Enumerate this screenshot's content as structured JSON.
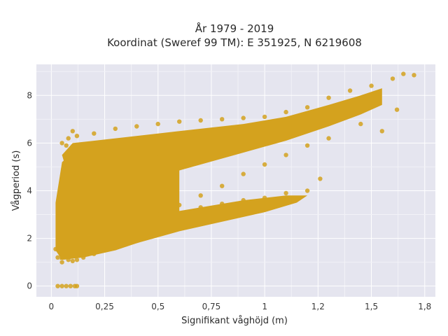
{
  "chart_data": {
    "type": "scatter",
    "title_line1": "År 1979 - 2019",
    "title_line2": "Koordinat (Sweref 99 TM): E 351925, N 6219608",
    "xlabel": "Signifikant våghöjd (m)",
    "ylabel": "Vågperiod (s)",
    "xlim": [
      -0.07,
      1.8
    ],
    "ylim": [
      -0.45,
      9.3
    ],
    "xticks": [
      0,
      0.25,
      0.5,
      0.75,
      1.0,
      1.25,
      1.5,
      1.75
    ],
    "xtick_labels": [
      "0",
      "0,25",
      "0,5",
      "0,75",
      "1",
      "1,2",
      "1,5",
      "1,8"
    ],
    "yticks": [
      0,
      2,
      4,
      6,
      8
    ],
    "ytick_labels": [
      "0",
      "2",
      "4",
      "6",
      "8"
    ],
    "grid": true,
    "marker_color": "#d4a21e",
    "plot_background": "#e5e5ef",
    "series": [
      {
        "points": [
          [
            0.02,
            1.55
          ],
          [
            0.03,
            1.2
          ],
          [
            0.04,
            2.5
          ],
          [
            0.05,
            3.8
          ],
          [
            0.06,
            5.0
          ],
          [
            0.07,
            5.9
          ],
          [
            0.08,
            1.1
          ],
          [
            0.1,
            1.05
          ],
          [
            0.12,
            1.1
          ],
          [
            0.15,
            1.2
          ],
          [
            0.2,
            1.35
          ],
          [
            0.25,
            1.5
          ],
          [
            0.3,
            1.6
          ],
          [
            0.35,
            1.75
          ],
          [
            0.4,
            1.9
          ],
          [
            0.45,
            2.1
          ],
          [
            0.05,
            6.0
          ],
          [
            0.08,
            6.2
          ],
          [
            0.1,
            6.5
          ],
          [
            0.12,
            6.3
          ],
          [
            0.2,
            6.4
          ],
          [
            0.3,
            6.6
          ],
          [
            0.4,
            6.7
          ],
          [
            0.5,
            6.8
          ],
          [
            0.6,
            6.9
          ],
          [
            0.7,
            6.95
          ],
          [
            0.8,
            7.0
          ],
          [
            0.9,
            7.05
          ],
          [
            1.0,
            7.1
          ],
          [
            1.1,
            7.3
          ],
          [
            1.2,
            7.5
          ],
          [
            1.3,
            7.9
          ],
          [
            1.4,
            8.2
          ],
          [
            1.5,
            8.4
          ],
          [
            1.6,
            8.7
          ],
          [
            1.65,
            8.9
          ],
          [
            1.7,
            8.85
          ],
          [
            1.55,
            6.5
          ],
          [
            1.62,
            7.4
          ],
          [
            1.45,
            6.8
          ],
          [
            1.3,
            6.2
          ],
          [
            1.2,
            5.9
          ],
          [
            1.1,
            5.5
          ],
          [
            1.0,
            5.1
          ],
          [
            0.9,
            4.7
          ],
          [
            0.8,
            4.2
          ],
          [
            0.7,
            3.8
          ],
          [
            0.6,
            3.4
          ],
          [
            0.5,
            3.0
          ],
          [
            0.4,
            2.6
          ],
          [
            1.26,
            4.5
          ],
          [
            1.2,
            4.0
          ],
          [
            1.1,
            3.9
          ],
          [
            1.0,
            3.7
          ],
          [
            0.9,
            3.6
          ],
          [
            0.8,
            3.45
          ],
          [
            0.7,
            3.3
          ],
          [
            0.6,
            2.9
          ],
          [
            0.55,
            4.5
          ],
          [
            0.35,
            5.5
          ],
          [
            0.25,
            5.8
          ],
          [
            0.15,
            5.0
          ],
          [
            0.3,
            3.5
          ],
          [
            0.2,
            2.8
          ],
          [
            0.12,
            2.0
          ],
          [
            0.05,
            1.0
          ],
          [
            0.03,
            0.0
          ],
          [
            0.05,
            0.0
          ],
          [
            0.07,
            0.0
          ],
          [
            0.09,
            0.0
          ],
          [
            0.11,
            0.0
          ],
          [
            0.12,
            0.0
          ]
        ]
      }
    ]
  }
}
